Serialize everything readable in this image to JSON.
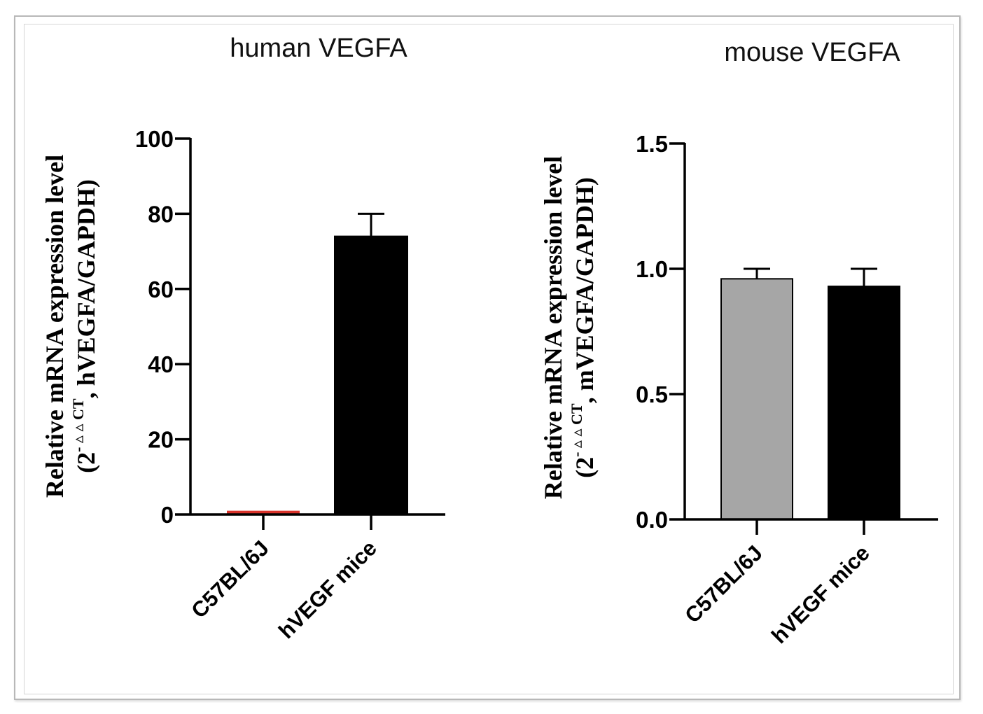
{
  "chart_data": [
    {
      "type": "bar",
      "title": "human VEGFA",
      "ylabel_line1": "Relative mRNA expression level",
      "ylabel_line2_open": "(2",
      "ylabel_line2_sup": "- ▵ ▵ CT",
      "ylabel_line2_rest": ", hVEGFA/GAPDH)",
      "categories": [
        "C57BL/6J",
        "hVEGF mice"
      ],
      "values": [
        1,
        74
      ],
      "error_upper": [
        1,
        80
      ],
      "bar_colors": [
        "#d9332b",
        "#000000"
      ],
      "yticks": [
        "0",
        "20",
        "40",
        "60",
        "80",
        "100"
      ],
      "ylim": [
        0,
        100
      ],
      "grid": false
    },
    {
      "type": "bar",
      "title": "mouse VEGFA",
      "ylabel_line1": "Relative mRNA expression level",
      "ylabel_line2_open": "(2",
      "ylabel_line2_sup": "- ▵ ▵ CT",
      "ylabel_line2_rest": ", mVEGFA/GAPDH)",
      "categories": [
        "C57BL/6J",
        "hVEGF mice"
      ],
      "values": [
        0.96,
        0.93
      ],
      "error_upper": [
        1.0,
        1.0
      ],
      "bar_colors": [
        "#a6a6a6",
        "#000000"
      ],
      "yticks": [
        "0.0",
        "0.5",
        "1.0",
        "1.5"
      ],
      "ylim": [
        0,
        1.5
      ],
      "grid": false
    }
  ]
}
